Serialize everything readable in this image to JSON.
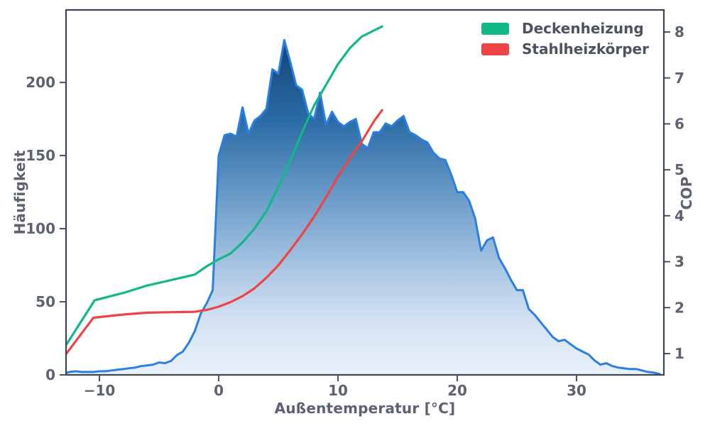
{
  "figure": {
    "background": "#ffffff",
    "spine_color": "#3a4452",
    "tick_color": "#4a5260",
    "tick_label_color": "#5b6370",
    "axis_label_color": "#5b6370"
  },
  "chart_data": {
    "type": "area+line",
    "title": "",
    "xlabel": "Außentemperatur [°C]",
    "ylabel_left": "Häufigkeit",
    "ylabel_right": "COP",
    "grid": false,
    "legend_position": "top-right",
    "xlim": [
      -12.8,
      37.32
    ],
    "ylim_left": [
      0,
      249.6
    ],
    "ylim_right": [
      0.536,
      8.48
    ],
    "xticks": [
      -10,
      0,
      10,
      20,
      30
    ],
    "yticks_left": [
      0,
      50,
      100,
      150,
      200
    ],
    "yticks_right": [
      1,
      2,
      3,
      4,
      5,
      6,
      7,
      8
    ],
    "histogram": {
      "name": "Häufigkeit",
      "axis": "left",
      "line_color": "#2b7fe3",
      "fill_gradient_top": "#123a66",
      "fill_gradient_bottom": "#e9f1fa",
      "x_start": -13,
      "x_step": 0.5,
      "values": [
        1,
        2,
        2.5,
        2,
        2,
        2,
        2.5,
        2.5,
        3,
        3.5,
        4,
        4.5,
        5,
        6,
        6.5,
        7,
        8.5,
        8,
        9.5,
        13.5,
        16,
        22,
        30,
        42,
        49,
        58,
        150,
        164,
        165,
        163,
        183,
        165,
        174,
        177,
        182,
        209,
        206,
        229,
        214,
        198,
        195,
        179,
        175,
        193,
        171,
        180,
        173,
        170,
        173,
        175,
        158,
        155,
        166,
        166,
        172,
        170,
        174,
        177,
        166,
        164,
        161,
        159,
        152,
        148,
        147,
        137,
        125,
        125,
        119,
        107,
        85,
        92,
        94,
        80,
        73,
        65,
        58,
        58,
        45,
        41,
        36,
        31,
        26,
        23,
        24,
        21,
        18,
        16,
        14,
        10,
        7,
        8,
        6,
        5,
        4.5,
        4,
        4,
        3,
        2,
        1.5,
        0.5
      ]
    },
    "series": [
      {
        "name": "Deckenheizung",
        "axis": "right",
        "color": "#12b886",
        "x": [
          -13,
          -10.4,
          -8,
          -6,
          -4,
          -2,
          -1,
          0,
          1,
          2,
          3,
          4,
          5,
          6,
          7,
          8,
          9,
          10,
          11,
          12,
          13,
          13.7
        ],
        "cop": [
          1.1,
          2.16,
          2.32,
          2.48,
          2.6,
          2.72,
          2.9,
          3.05,
          3.18,
          3.42,
          3.72,
          4.1,
          4.62,
          5.2,
          5.82,
          6.4,
          6.85,
          7.3,
          7.65,
          7.9,
          8.03,
          8.12
        ]
      },
      {
        "name": "Stahlheizkörper",
        "axis": "right",
        "color": "#ef4444",
        "x": [
          -13,
          -10.5,
          -8,
          -6,
          -4,
          -2,
          -1,
          0,
          1,
          2,
          3,
          4,
          5,
          6,
          7,
          8,
          9,
          10,
          11,
          12,
          13,
          13.7
        ],
        "cop": [
          0.92,
          1.78,
          1.85,
          1.89,
          1.9,
          1.91,
          1.95,
          2.02,
          2.12,
          2.25,
          2.42,
          2.65,
          2.92,
          3.25,
          3.6,
          3.98,
          4.4,
          4.85,
          5.25,
          5.62,
          6.05,
          6.3
        ]
      }
    ]
  }
}
